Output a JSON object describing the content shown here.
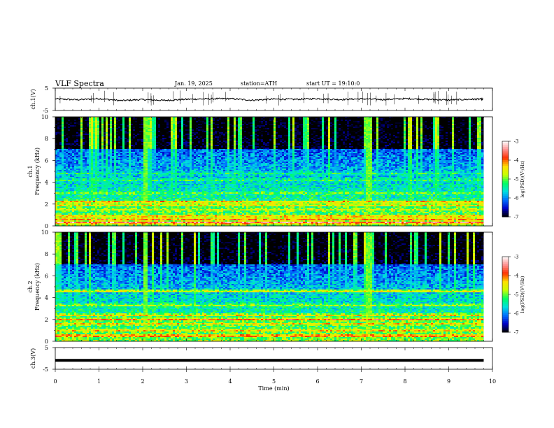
{
  "header": {
    "title": "VLF Spectra",
    "date": "Jan. 19, 2025",
    "station": "station=ATH",
    "start": "start UT =  19:10:0"
  },
  "chart_data": [
    {
      "type": "line",
      "panel": "ch1-waveform",
      "ylabel": "ch.1(V)",
      "ylim": [
        -5,
        5
      ],
      "y_ticks": [
        "5",
        "-5"
      ],
      "xlim": [
        0,
        10
      ],
      "color": "#000000",
      "x": [
        0,
        0.5,
        1,
        1.5,
        2,
        2.5,
        3,
        3.5,
        4,
        4.5,
        5,
        5.5,
        6,
        6.5,
        7,
        7.5,
        8,
        8.5,
        9,
        9.5,
        9.8
      ],
      "values": [
        0.2,
        -0.2,
        0.3,
        -0.6,
        -0.1,
        -0.5,
        0.0,
        0.2,
        0.3,
        -0.4,
        0.1,
        0.0,
        0.3,
        -0.1,
        0.2,
        -0.1,
        0.3,
        0.0,
        -0.3,
        0.0,
        0.1
      ]
    },
    {
      "type": "heatmap",
      "panel": "ch1-spectrogram",
      "ylabel": "ch.1\nFrequency (kHz)",
      "xlim": [
        0,
        10
      ],
      "ylim": [
        0,
        10
      ],
      "y_ticks": [
        "0",
        "2",
        "4",
        "6",
        "8",
        "10"
      ],
      "data_x_end": 9.8,
      "colorbar": {
        "label": "log(PSD)(V²/Hz)",
        "range": [
          -7,
          -3
        ],
        "ticks": [
          "-3",
          "-4",
          "-5",
          "-6",
          "-7"
        ],
        "colors": [
          "#000000",
          "#0000c8",
          "#0070ff",
          "#00e0e0",
          "#00ff60",
          "#c8ff00",
          "#ffe000",
          "#ff3000",
          "#ff9090",
          "#ffffff"
        ]
      },
      "bands_khz": [
        {
          "f": 0.3,
          "level": -3.4
        },
        {
          "f": 0.6,
          "level": -3.9
        },
        {
          "f": 0.9,
          "level": -4.1
        },
        {
          "f": 1.5,
          "level": -4.6
        },
        {
          "f": 1.9,
          "level": -4.3
        },
        {
          "f": 2.2,
          "level": -4.0
        },
        {
          "f": 3.0,
          "level": -5.0
        },
        {
          "f": 4.2,
          "level": -5.2
        },
        {
          "f": 4.8,
          "level": -5.3
        }
      ],
      "events_min": [
        2.05,
        7.15
      ]
    },
    {
      "type": "heatmap",
      "panel": "ch2-spectrogram",
      "ylabel": "ch.2\nFrequency (kHz)",
      "xlim": [
        0,
        10
      ],
      "ylim": [
        0,
        10
      ],
      "y_ticks": [
        "0",
        "2",
        "4",
        "6",
        "8",
        "10"
      ],
      "data_x_end": 9.8,
      "colorbar": {
        "label": "log(PSD)(V²/Hz)",
        "range": [
          -7,
          -3
        ],
        "ticks": [
          "-3",
          "-4",
          "-5",
          "-6",
          "-7"
        ],
        "colors": [
          "#000000",
          "#0000c8",
          "#0070ff",
          "#00e0e0",
          "#00ff60",
          "#c8ff00",
          "#ffe000",
          "#ff3000",
          "#ff9090",
          "#ffffff"
        ]
      },
      "bands_khz": [
        {
          "f": 0.5,
          "level": -3.8
        },
        {
          "f": 1.0,
          "level": -4.2
        },
        {
          "f": 1.6,
          "level": -4.4
        },
        {
          "f": 2.0,
          "level": -3.8
        },
        {
          "f": 2.4,
          "level": -4.3
        },
        {
          "f": 3.3,
          "level": -4.7
        },
        {
          "f": 4.6,
          "level": -4.2
        }
      ],
      "events_min": [
        2.05,
        7.15
      ]
    },
    {
      "type": "line",
      "panel": "ch3-waveform",
      "ylabel": "ch.3(V)",
      "ylim": [
        -5,
        5
      ],
      "y_ticks": [
        "5",
        "-5"
      ],
      "xlim": [
        0,
        10
      ],
      "xlabel": "Time (min)",
      "x_ticks": [
        "0",
        "1",
        "2",
        "3",
        "4",
        "5",
        "6",
        "7",
        "8",
        "9",
        "10"
      ],
      "color": "#000000",
      "x": [
        0,
        9.8
      ],
      "values": [
        -0.9,
        -0.9
      ]
    }
  ]
}
